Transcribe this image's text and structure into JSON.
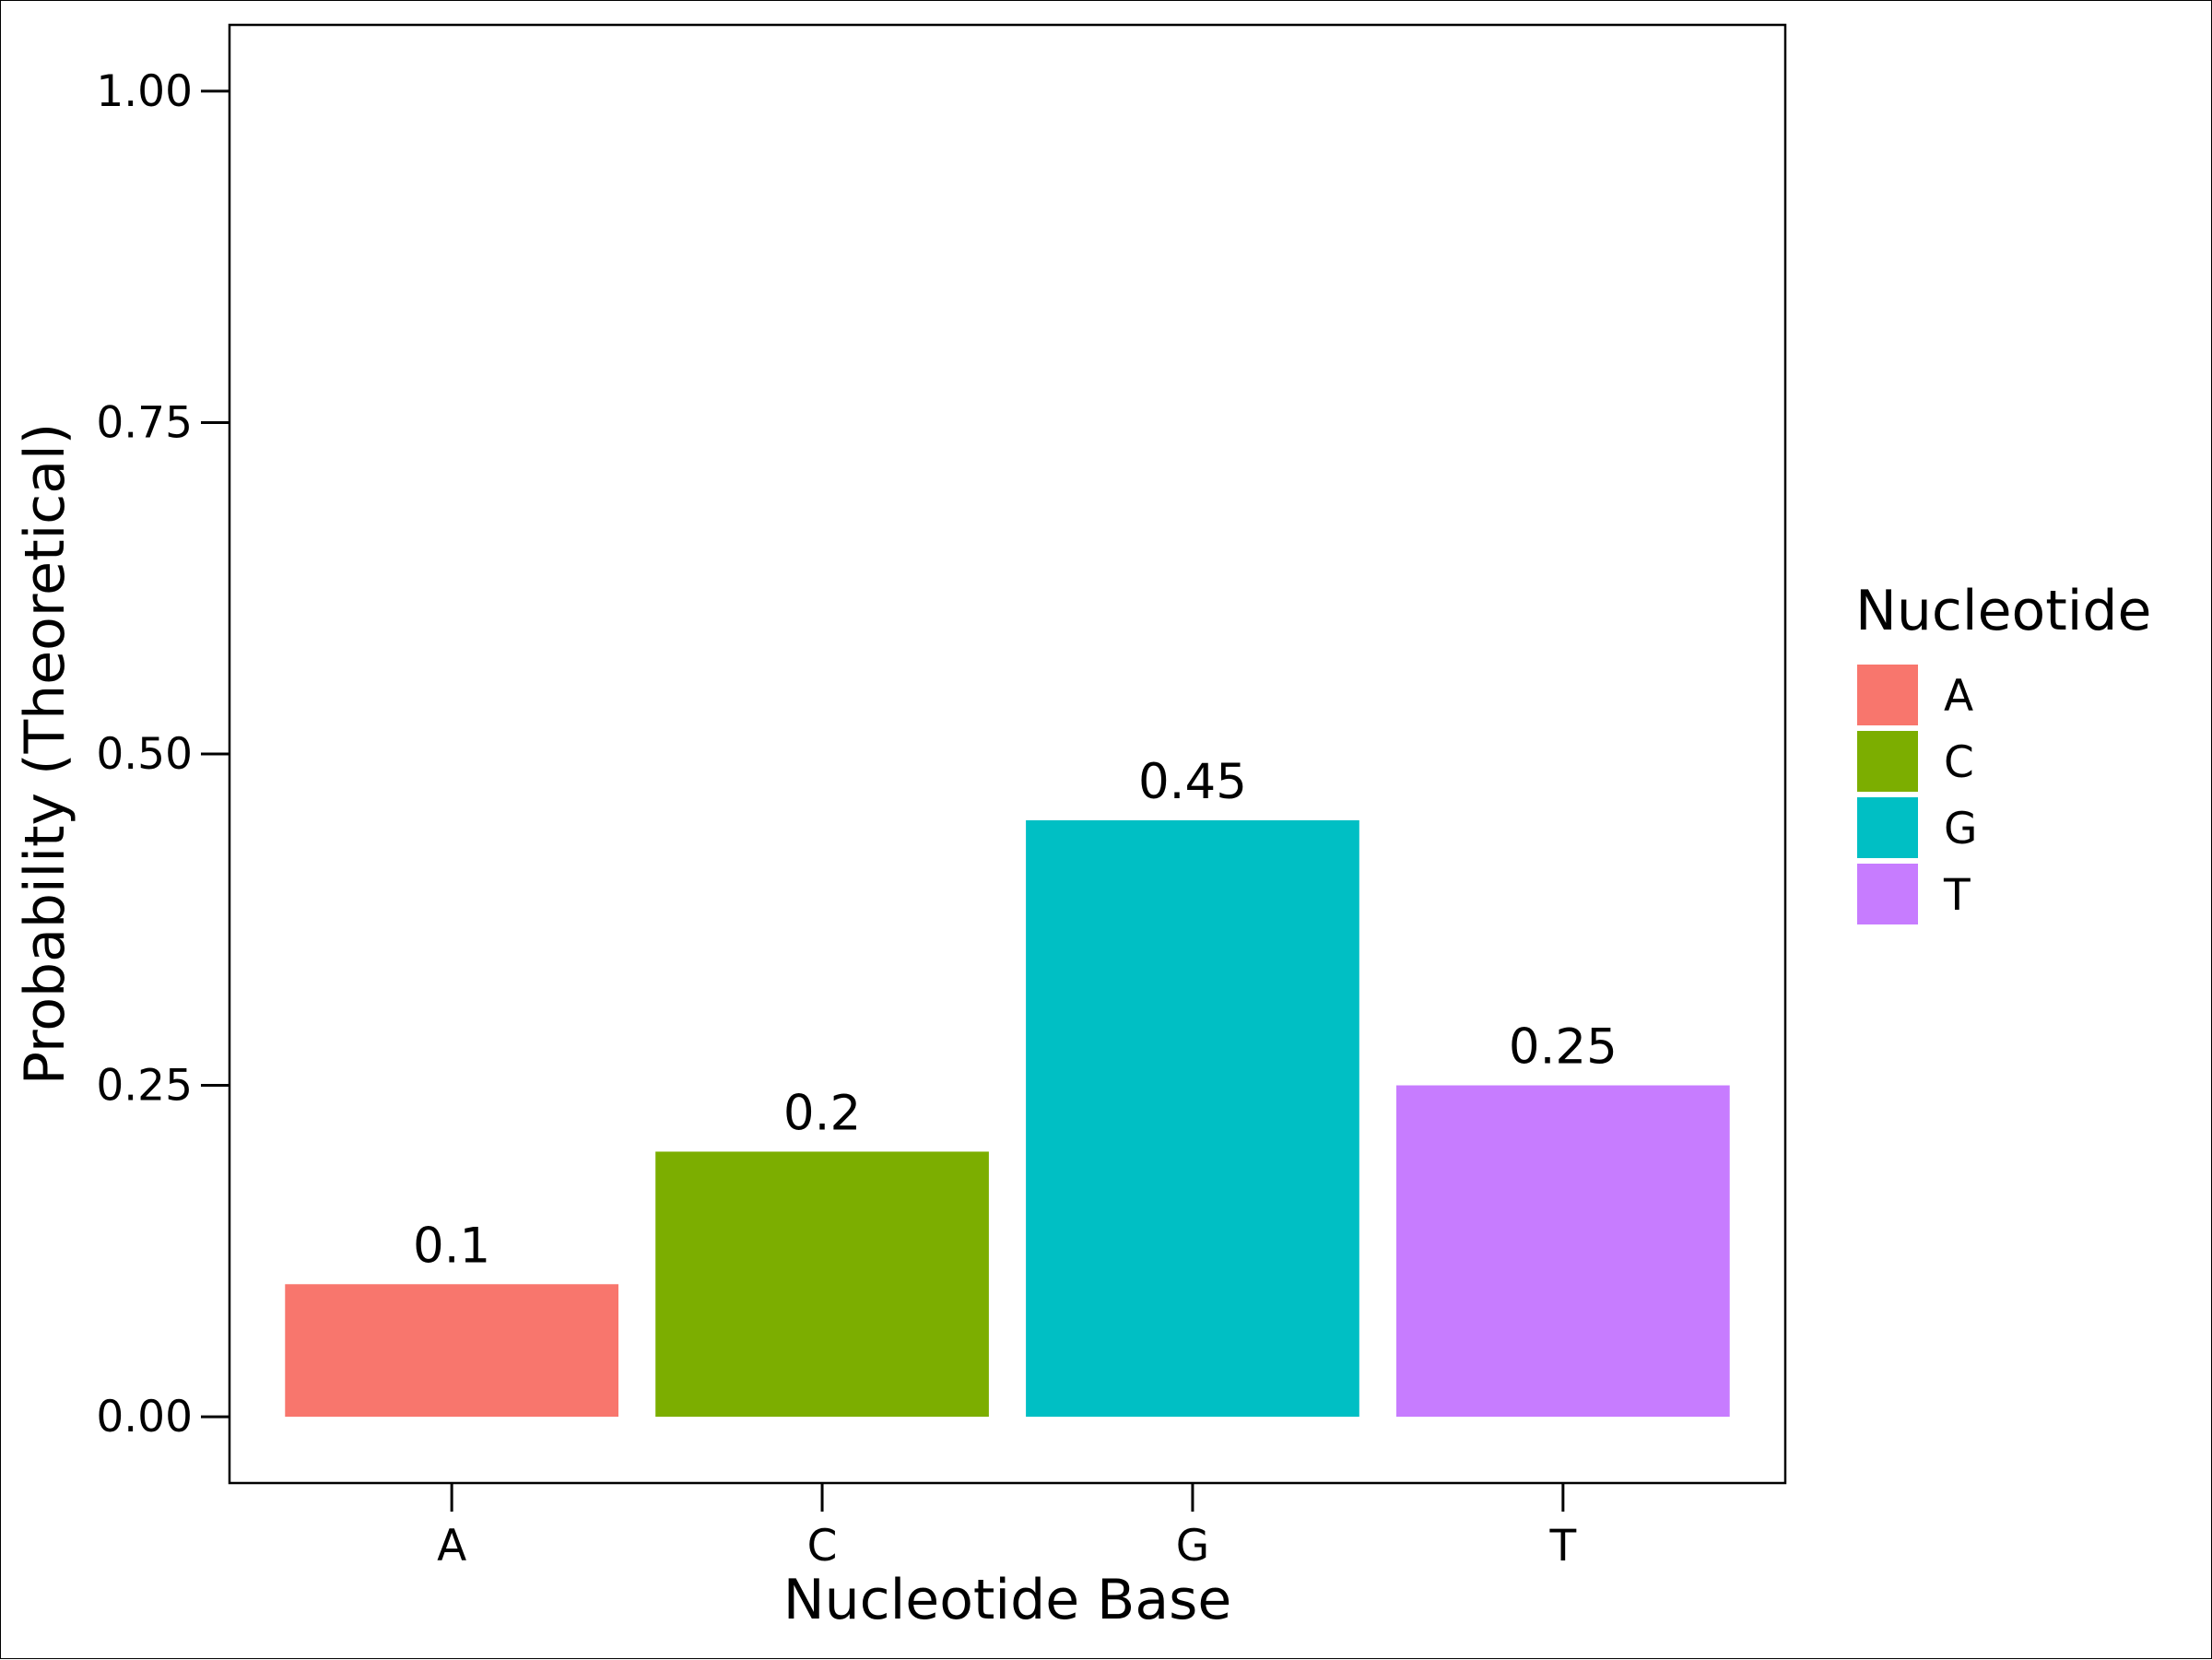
{
  "chart_data": {
    "type": "bar",
    "categories": [
      "A",
      "C",
      "G",
      "T"
    ],
    "values": [
      0.1,
      0.2,
      0.45,
      0.25
    ],
    "data_labels": [
      "0.1",
      "0.2",
      "0.45",
      "0.25"
    ],
    "colors": [
      "#F8766D",
      "#7CAE00",
      "#00BFC4",
      "#C77CFF"
    ],
    "xlabel": "Nucleotide Base",
    "ylabel": "Probability (Theoretical)",
    "ylim": [
      -0.05,
      1.05
    ],
    "yticks": [
      0,
      0.25,
      0.5,
      0.75,
      1.0
    ],
    "ytick_labels": [
      "0.00",
      "0.25",
      "0.50",
      "0.75",
      "1.00"
    ],
    "grid": false,
    "legend": {
      "title": "Nucleotide",
      "placement": "right",
      "items": [
        {
          "label": "A",
          "color": "#F8766D"
        },
        {
          "label": "C",
          "color": "#7CAE00"
        },
        {
          "label": "G",
          "color": "#00BFC4"
        },
        {
          "label": "T",
          "color": "#C77CFF"
        }
      ]
    }
  }
}
